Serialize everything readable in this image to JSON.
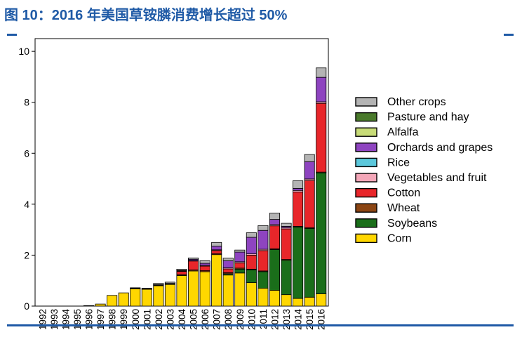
{
  "title": "图 10：2016 年美国草铵膦消费增长超过 50%",
  "colors": {
    "accent": "#1f5aa6"
  },
  "chart_data": {
    "type": "bar",
    "stacked": true,
    "categories": [
      "1992",
      "1993",
      "1994",
      "1995",
      "1996",
      "1997",
      "1998",
      "1999",
      "2000",
      "2001",
      "2002",
      "2003",
      "2004",
      "2005",
      "2006",
      "2007",
      "2008",
      "2009",
      "2010",
      "2011",
      "2012",
      "2013",
      "2014",
      "2015",
      "2016"
    ],
    "ylim": [
      0,
      10.5
    ],
    "yticks": [
      0,
      2,
      4,
      6,
      8,
      10
    ],
    "legend_position": "right",
    "series": [
      {
        "name": "Corn",
        "color": "#ffd700",
        "values": [
          0,
          0,
          0,
          0,
          0.02,
          0.08,
          0.42,
          0.52,
          0.68,
          0.66,
          0.8,
          0.85,
          1.2,
          1.38,
          1.35,
          2.02,
          1.22,
          1.3,
          0.92,
          0.7,
          0.62,
          0.45,
          0.3,
          0.35,
          0.48
        ]
      },
      {
        "name": "Soybeans",
        "color": "#1a6e1a",
        "values": [
          0,
          0,
          0,
          0,
          0,
          0,
          0,
          0,
          0,
          0,
          0,
          0,
          0,
          0,
          0,
          0,
          0.05,
          0.15,
          0.5,
          0.65,
          1.6,
          1.35,
          2.8,
          2.7,
          4.75
        ]
      },
      {
        "name": "Wheat",
        "color": "#8b4513",
        "values": [
          0,
          0,
          0,
          0,
          0,
          0,
          0,
          0,
          0.02,
          0.02,
          0.02,
          0.02,
          0.04,
          0.04,
          0.04,
          0.04,
          0.04,
          0.04,
          0.03,
          0.03,
          0.03,
          0.03,
          0.03,
          0.03,
          0.03
        ]
      },
      {
        "name": "Cotton",
        "color": "#e8262a",
        "values": [
          0,
          0,
          0,
          0,
          0,
          0,
          0,
          0,
          0,
          0,
          0.02,
          0.02,
          0.12,
          0.35,
          0.18,
          0.12,
          0.15,
          0.2,
          0.55,
          0.8,
          0.9,
          1.2,
          1.35,
          1.85,
          2.7
        ]
      },
      {
        "name": "Vegetables and fruit",
        "color": "#f4a7b9",
        "values": [
          0,
          0,
          0,
          0,
          0,
          0,
          0,
          0,
          0,
          0,
          0,
          0,
          0.02,
          0.02,
          0.03,
          0.03,
          0.04,
          0.05,
          0.05,
          0.05,
          0.05,
          0.05,
          0.06,
          0.06,
          0.06
        ]
      },
      {
        "name": "Rice",
        "color": "#5bc8dc",
        "values": [
          0,
          0,
          0,
          0,
          0,
          0,
          0,
          0,
          0,
          0,
          0,
          0,
          0,
          0,
          0,
          0,
          0,
          0,
          0,
          0,
          0,
          0,
          0,
          0,
          0
        ]
      },
      {
        "name": "Orchards and grapes",
        "color": "#8e44c0",
        "values": [
          0,
          0,
          0,
          0,
          0,
          0,
          0,
          0,
          0,
          0,
          0,
          0,
          0.02,
          0.05,
          0.08,
          0.14,
          0.28,
          0.38,
          0.65,
          0.74,
          0.2,
          0.05,
          0.08,
          0.68,
          0.96
        ]
      },
      {
        "name": "Alfalfa",
        "color": "#c8dc78",
        "values": [
          0,
          0,
          0,
          0,
          0,
          0,
          0,
          0,
          0,
          0,
          0,
          0,
          0,
          0,
          0,
          0,
          0,
          0,
          0,
          0,
          0,
          0,
          0,
          0,
          0
        ]
      },
      {
        "name": "Pasture and hay",
        "color": "#4a7a2c",
        "values": [
          0,
          0,
          0,
          0,
          0,
          0,
          0,
          0,
          0,
          0,
          0,
          0,
          0,
          0,
          0,
          0,
          0,
          0,
          0,
          0,
          0,
          0,
          0,
          0,
          0
        ]
      },
      {
        "name": "Other crops",
        "color": "#b4b4b4",
        "values": [
          0,
          0,
          0,
          0,
          0,
          0,
          0,
          0,
          0.02,
          0.02,
          0.05,
          0.05,
          0.05,
          0.05,
          0.1,
          0.15,
          0.1,
          0.08,
          0.18,
          0.19,
          0.25,
          0.12,
          0.3,
          0.28,
          0.37
        ]
      }
    ]
  }
}
